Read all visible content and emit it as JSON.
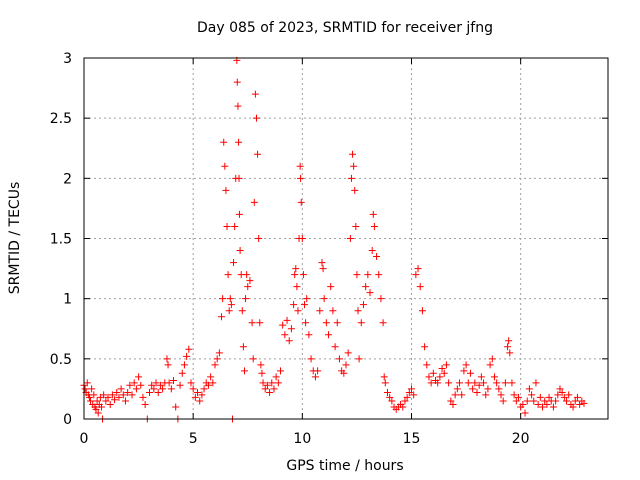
{
  "chart_data": {
    "type": "scatter",
    "title": "Day 085 of 2023, SRMTID for receiver jfng",
    "xlabel": "GPS time / hours",
    "ylabel": "SRMTID / TECUs",
    "xlim": [
      0,
      24
    ],
    "ylim": [
      0,
      3
    ],
    "xticks": [
      0,
      5,
      10,
      15,
      20
    ],
    "yticks": [
      0,
      0.5,
      1,
      1.5,
      2,
      2.5,
      3
    ],
    "xtick_labels": [
      "0",
      "5",
      "10",
      "15",
      "20"
    ],
    "ytick_labels": [
      "0",
      "0.5",
      "1",
      "1.5",
      "2",
      "2.5",
      "3"
    ],
    "grid": true,
    "marker": "+",
    "color": "#ff0000",
    "series": [
      {
        "name": "SRMTID",
        "points": [
          [
            0.0,
            0.28
          ],
          [
            0.05,
            0.25
          ],
          [
            0.1,
            0.22
          ],
          [
            0.15,
            0.3
          ],
          [
            0.2,
            0.2
          ],
          [
            0.25,
            0.18
          ],
          [
            0.3,
            0.15
          ],
          [
            0.35,
            0.25
          ],
          [
            0.4,
            0.12
          ],
          [
            0.45,
            0.2
          ],
          [
            0.5,
            0.1
          ],
          [
            0.55,
            0.08
          ],
          [
            0.6,
            0.15
          ],
          [
            0.65,
            0.05
          ],
          [
            0.7,
            0.12
          ],
          [
            0.75,
            0.18
          ],
          [
            0.8,
            0.1
          ],
          [
            0.85,
            0.0
          ],
          [
            0.9,
            0.2
          ],
          [
            1.0,
            0.15
          ],
          [
            1.1,
            0.18
          ],
          [
            1.2,
            0.12
          ],
          [
            1.3,
            0.2
          ],
          [
            1.4,
            0.16
          ],
          [
            1.5,
            0.22
          ],
          [
            1.6,
            0.18
          ],
          [
            1.7,
            0.25
          ],
          [
            1.8,
            0.2
          ],
          [
            1.9,
            0.15
          ],
          [
            2.0,
            0.22
          ],
          [
            2.1,
            0.28
          ],
          [
            2.2,
            0.2
          ],
          [
            2.3,
            0.3
          ],
          [
            2.4,
            0.25
          ],
          [
            2.5,
            0.35
          ],
          [
            2.6,
            0.28
          ],
          [
            2.7,
            0.18
          ],
          [
            2.8,
            0.12
          ],
          [
            2.9,
            0.0
          ],
          [
            3.0,
            0.22
          ],
          [
            3.1,
            0.28
          ],
          [
            3.2,
            0.25
          ],
          [
            3.3,
            0.3
          ],
          [
            3.4,
            0.22
          ],
          [
            3.5,
            0.28
          ],
          [
            3.6,
            0.25
          ],
          [
            3.7,
            0.3
          ],
          [
            3.8,
            0.5
          ],
          [
            3.85,
            0.45
          ],
          [
            3.9,
            0.3
          ],
          [
            4.0,
            0.25
          ],
          [
            4.1,
            0.32
          ],
          [
            4.2,
            0.1
          ],
          [
            4.3,
            0.0
          ],
          [
            4.4,
            0.28
          ],
          [
            4.5,
            0.38
          ],
          [
            4.6,
            0.45
          ],
          [
            4.7,
            0.52
          ],
          [
            4.8,
            0.58
          ],
          [
            4.9,
            0.3
          ],
          [
            5.0,
            0.25
          ],
          [
            5.1,
            0.18
          ],
          [
            5.2,
            0.22
          ],
          [
            5.3,
            0.15
          ],
          [
            5.4,
            0.2
          ],
          [
            5.5,
            0.25
          ],
          [
            5.6,
            0.3
          ],
          [
            5.7,
            0.28
          ],
          [
            5.8,
            0.35
          ],
          [
            5.9,
            0.3
          ],
          [
            6.0,
            0.45
          ],
          [
            6.1,
            0.5
          ],
          [
            6.2,
            0.55
          ],
          [
            6.3,
            0.85
          ],
          [
            6.35,
            1.0
          ],
          [
            6.4,
            2.3
          ],
          [
            6.45,
            2.1
          ],
          [
            6.5,
            1.9
          ],
          [
            6.55,
            1.6
          ],
          [
            6.6,
            1.2
          ],
          [
            6.65,
            0.9
          ],
          [
            6.7,
            1.0
          ],
          [
            6.75,
            0.95
          ],
          [
            6.8,
            0.0
          ],
          [
            6.85,
            1.3
          ],
          [
            6.9,
            1.6
          ],
          [
            6.95,
            2.0
          ],
          [
            7.0,
            2.98
          ],
          [
            7.02,
            2.8
          ],
          [
            7.05,
            2.6
          ],
          [
            7.08,
            2.3
          ],
          [
            7.1,
            2.0
          ],
          [
            7.12,
            1.7
          ],
          [
            7.15,
            1.4
          ],
          [
            7.2,
            1.2
          ],
          [
            7.25,
            0.9
          ],
          [
            7.3,
            0.6
          ],
          [
            7.35,
            0.4
          ],
          [
            7.4,
            1.0
          ],
          [
            7.45,
            1.2
          ],
          [
            7.5,
            1.1
          ],
          [
            7.6,
            1.15
          ],
          [
            7.7,
            0.8
          ],
          [
            7.75,
            0.5
          ],
          [
            7.8,
            1.8
          ],
          [
            7.85,
            2.7
          ],
          [
            7.9,
            2.5
          ],
          [
            7.95,
            2.2
          ],
          [
            8.0,
            1.5
          ],
          [
            8.05,
            0.8
          ],
          [
            8.1,
            0.45
          ],
          [
            8.15,
            0.38
          ],
          [
            8.2,
            0.3
          ],
          [
            8.3,
            0.25
          ],
          [
            8.4,
            0.28
          ],
          [
            8.5,
            0.22
          ],
          [
            8.6,
            0.3
          ],
          [
            8.7,
            0.25
          ],
          [
            8.8,
            0.35
          ],
          [
            8.9,
            0.3
          ],
          [
            9.0,
            0.4
          ],
          [
            9.1,
            0.78
          ],
          [
            9.2,
            0.7
          ],
          [
            9.3,
            0.82
          ],
          [
            9.4,
            0.65
          ],
          [
            9.5,
            0.75
          ],
          [
            9.6,
            0.95
          ],
          [
            9.65,
            1.2
          ],
          [
            9.7,
            1.25
          ],
          [
            9.75,
            1.1
          ],
          [
            9.8,
            0.9
          ],
          [
            9.85,
            1.5
          ],
          [
            9.9,
            2.1
          ],
          [
            9.92,
            2.0
          ],
          [
            9.95,
            1.8
          ],
          [
            10.0,
            1.5
          ],
          [
            10.05,
            1.2
          ],
          [
            10.1,
            0.95
          ],
          [
            10.15,
            0.8
          ],
          [
            10.2,
            1.0
          ],
          [
            10.3,
            0.7
          ],
          [
            10.4,
            0.5
          ],
          [
            10.5,
            0.4
          ],
          [
            10.6,
            0.35
          ],
          [
            10.7,
            0.4
          ],
          [
            10.8,
            0.9
          ],
          [
            10.9,
            1.3
          ],
          [
            10.95,
            1.25
          ],
          [
            11.0,
            1.0
          ],
          [
            11.1,
            0.8
          ],
          [
            11.2,
            0.7
          ],
          [
            11.3,
            1.1
          ],
          [
            11.4,
            0.9
          ],
          [
            11.5,
            0.6
          ],
          [
            11.6,
            0.8
          ],
          [
            11.7,
            0.5
          ],
          [
            11.8,
            0.4
          ],
          [
            11.9,
            0.38
          ],
          [
            12.0,
            0.45
          ],
          [
            12.1,
            0.55
          ],
          [
            12.2,
            1.5
          ],
          [
            12.25,
            2.0
          ],
          [
            12.3,
            2.2
          ],
          [
            12.35,
            2.1
          ],
          [
            12.4,
            1.9
          ],
          [
            12.45,
            1.6
          ],
          [
            12.5,
            1.2
          ],
          [
            12.55,
            0.9
          ],
          [
            12.6,
            0.5
          ],
          [
            12.7,
            0.8
          ],
          [
            12.8,
            0.95
          ],
          [
            12.9,
            1.1
          ],
          [
            13.0,
            1.2
          ],
          [
            13.1,
            1.05
          ],
          [
            13.2,
            1.4
          ],
          [
            13.25,
            1.7
          ],
          [
            13.3,
            1.6
          ],
          [
            13.4,
            1.35
          ],
          [
            13.5,
            1.2
          ],
          [
            13.6,
            1.0
          ],
          [
            13.7,
            0.8
          ],
          [
            13.75,
            0.35
          ],
          [
            13.8,
            0.3
          ],
          [
            13.9,
            0.22
          ],
          [
            14.0,
            0.18
          ],
          [
            14.1,
            0.15
          ],
          [
            14.2,
            0.1
          ],
          [
            14.3,
            0.08
          ],
          [
            14.4,
            0.1
          ],
          [
            14.5,
            0.12
          ],
          [
            14.6,
            0.1
          ],
          [
            14.7,
            0.15
          ],
          [
            14.8,
            0.18
          ],
          [
            14.9,
            0.22
          ],
          [
            15.0,
            0.25
          ],
          [
            15.1,
            0.2
          ],
          [
            15.2,
            1.2
          ],
          [
            15.3,
            1.25
          ],
          [
            15.4,
            1.1
          ],
          [
            15.5,
            0.9
          ],
          [
            15.6,
            0.6
          ],
          [
            15.7,
            0.45
          ],
          [
            15.8,
            0.35
          ],
          [
            15.9,
            0.3
          ],
          [
            16.0,
            0.38
          ],
          [
            16.1,
            0.32
          ],
          [
            16.2,
            0.3
          ],
          [
            16.3,
            0.35
          ],
          [
            16.4,
            0.42
          ],
          [
            16.5,
            0.38
          ],
          [
            16.6,
            0.45
          ],
          [
            16.7,
            0.3
          ],
          [
            16.8,
            0.15
          ],
          [
            16.9,
            0.12
          ],
          [
            17.0,
            0.2
          ],
          [
            17.1,
            0.25
          ],
          [
            17.2,
            0.3
          ],
          [
            17.3,
            0.2
          ],
          [
            17.4,
            0.4
          ],
          [
            17.5,
            0.45
          ],
          [
            17.6,
            0.3
          ],
          [
            17.7,
            0.38
          ],
          [
            17.8,
            0.25
          ],
          [
            17.9,
            0.3
          ],
          [
            18.0,
            0.22
          ],
          [
            18.1,
            0.28
          ],
          [
            18.2,
            0.35
          ],
          [
            18.3,
            0.3
          ],
          [
            18.4,
            0.2
          ],
          [
            18.5,
            0.25
          ],
          [
            18.6,
            0.45
          ],
          [
            18.7,
            0.5
          ],
          [
            18.8,
            0.35
          ],
          [
            18.9,
            0.3
          ],
          [
            19.0,
            0.25
          ],
          [
            19.1,
            0.2
          ],
          [
            19.2,
            0.15
          ],
          [
            19.3,
            0.3
          ],
          [
            19.4,
            0.6
          ],
          [
            19.45,
            0.65
          ],
          [
            19.5,
            0.55
          ],
          [
            19.6,
            0.3
          ],
          [
            19.7,
            0.2
          ],
          [
            19.8,
            0.15
          ],
          [
            19.9,
            0.18
          ],
          [
            20.0,
            0.1
          ],
          [
            20.1,
            0.12
          ],
          [
            20.2,
            0.05
          ],
          [
            20.3,
            0.15
          ],
          [
            20.4,
            0.25
          ],
          [
            20.5,
            0.2
          ],
          [
            20.6,
            0.15
          ],
          [
            20.7,
            0.3
          ],
          [
            20.8,
            0.12
          ],
          [
            20.9,
            0.18
          ],
          [
            21.0,
            0.1
          ],
          [
            21.1,
            0.15
          ],
          [
            21.2,
            0.12
          ],
          [
            21.3,
            0.18
          ],
          [
            21.4,
            0.15
          ],
          [
            21.5,
            0.1
          ],
          [
            21.6,
            0.15
          ],
          [
            21.7,
            0.2
          ],
          [
            21.8,
            0.25
          ],
          [
            21.9,
            0.22
          ],
          [
            22.0,
            0.18
          ],
          [
            22.1,
            0.15
          ],
          [
            22.2,
            0.2
          ],
          [
            22.3,
            0.12
          ],
          [
            22.4,
            0.1
          ],
          [
            22.5,
            0.15
          ],
          [
            22.6,
            0.18
          ],
          [
            22.7,
            0.12
          ],
          [
            22.8,
            0.15
          ],
          [
            22.9,
            0.13
          ]
        ]
      }
    ]
  }
}
